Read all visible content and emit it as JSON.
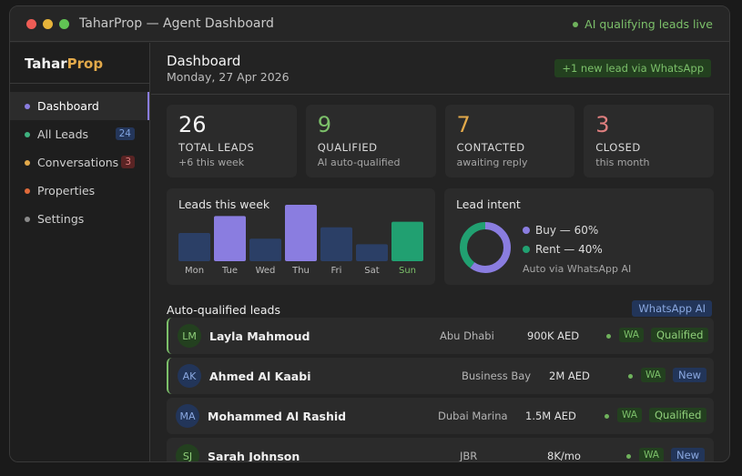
{
  "window": {
    "title": "TaharProp — Agent Dashboard",
    "live_status": "AI qualifying leads live"
  },
  "sidebar": {
    "logo_primary": "Tahar",
    "logo_accent": "Prop",
    "items": [
      {
        "label": "Dashboard",
        "dot_color": "#8a7de0",
        "badge": null,
        "active": true
      },
      {
        "label": "All Leads",
        "dot_color": "#3fb27f",
        "badge": "24",
        "badge_style": "blue"
      },
      {
        "label": "Conversations",
        "dot_color": "#e2a94a",
        "badge": "3",
        "badge_style": "red"
      },
      {
        "label": "Properties",
        "dot_color": "#e06a3a",
        "badge": null
      },
      {
        "label": "Settings",
        "dot_color": "#8a8a8a",
        "badge": null
      }
    ]
  },
  "header": {
    "title": "Dashboard",
    "date": "Monday, 27 Apr 2026",
    "new_lead": "+1 new lead via WhatsApp"
  },
  "stats": [
    {
      "value": "26",
      "label": "TOTAL LEADS",
      "sub": "+6 this week",
      "color": "#f4f4f4"
    },
    {
      "value": "9",
      "label": "QUALIFIED",
      "sub": "AI auto-qualified",
      "color": "#7cc06a"
    },
    {
      "value": "7",
      "label": "CONTACTED",
      "sub": "awaiting reply",
      "color": "#e2a94a"
    },
    {
      "value": "3",
      "label": "CLOSED",
      "sub": "this month",
      "color": "#e07f7f"
    }
  ],
  "chart_data": {
    "type": "bar",
    "title": "Leads this week",
    "categories": [
      "Mon",
      "Tue",
      "Wed",
      "Thu",
      "Fri",
      "Sat",
      "Sun"
    ],
    "values": [
      5,
      8,
      4,
      10,
      6,
      3,
      7
    ],
    "colors": [
      "#2b3f66",
      "#8a7de0",
      "#2b3f66",
      "#8a7de0",
      "#2b3f66",
      "#2b3f66",
      "#21a071"
    ],
    "highlight_label_color": "#7cc06a",
    "grid": false
  },
  "intent": {
    "title": "Lead intent",
    "segments": [
      {
        "label": "Buy — 60%",
        "value": 60,
        "color": "#8a7de0"
      },
      {
        "label": "Rent — 40%",
        "value": 40,
        "color": "#21a071"
      }
    ],
    "footer": "Auto via WhatsApp AI"
  },
  "leads": {
    "title": "Auto-qualified leads",
    "channel_badge": "WhatsApp AI",
    "rows": [
      {
        "initials": "LM",
        "name": "Layla Mahmoud",
        "location": "Abu Dhabi",
        "price": "900K AED",
        "channel": "WA",
        "status": "Qualified",
        "status_style": "qualified",
        "avatar_bg": "#23401f",
        "avatar_fg": "#8fcf7a",
        "highlight": true
      },
      {
        "initials": "AK",
        "name": "Ahmed Al Kaabi",
        "location": "Business Bay",
        "price": "2M AED",
        "channel": "WA",
        "status": "New",
        "status_style": "new",
        "avatar_bg": "#223559",
        "avatar_fg": "#8aa8e0",
        "highlight": true
      },
      {
        "initials": "MA",
        "name": "Mohammed Al Rashid",
        "location": "Dubai Marina",
        "price": "1.5M AED",
        "channel": "WA",
        "status": "Qualified",
        "status_style": "qualified",
        "avatar_bg": "#223559",
        "avatar_fg": "#8aa8e0",
        "highlight": false
      },
      {
        "initials": "SJ",
        "name": "Sarah Johnson",
        "location": "JBR",
        "price": "8K/mo",
        "channel": "WA",
        "status": "New",
        "status_style": "new",
        "avatar_bg": "#23401f",
        "avatar_fg": "#8fcf7a",
        "highlight": false
      }
    ]
  }
}
